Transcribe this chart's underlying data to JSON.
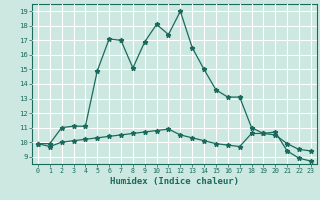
{
  "title": "",
  "xlabel": "Humidex (Indice chaleur)",
  "xlim": [
    -0.5,
    23.5
  ],
  "ylim": [
    8.5,
    19.5
  ],
  "xticks": [
    0,
    1,
    2,
    3,
    4,
    5,
    6,
    7,
    8,
    9,
    10,
    11,
    12,
    13,
    14,
    15,
    16,
    17,
    18,
    19,
    20,
    21,
    22,
    23
  ],
  "yticks": [
    9,
    10,
    11,
    12,
    13,
    14,
    15,
    16,
    17,
    18,
    19
  ],
  "background_color": "#cce8e0",
  "grid_color": "#ffffff",
  "line_color": "#1a6b5e",
  "line1_x": [
    0,
    1,
    2,
    3,
    4,
    5,
    6,
    7,
    8,
    9,
    10,
    11,
    12,
    13,
    14,
    15,
    16,
    17,
    18,
    19,
    20,
    21,
    22,
    23
  ],
  "line1_y": [
    9.9,
    9.9,
    11.0,
    11.1,
    11.1,
    14.9,
    17.1,
    17.0,
    15.1,
    16.9,
    18.1,
    17.4,
    19.0,
    16.5,
    15.0,
    13.6,
    13.1,
    13.1,
    11.0,
    10.6,
    10.7,
    9.4,
    8.9,
    8.7
  ],
  "line2_x": [
    0,
    1,
    2,
    3,
    4,
    5,
    6,
    7,
    8,
    9,
    10,
    11,
    12,
    13,
    14,
    15,
    16,
    17,
    18,
    19,
    20,
    21,
    22,
    23
  ],
  "line2_y": [
    9.9,
    9.7,
    10.0,
    10.1,
    10.2,
    10.3,
    10.4,
    10.5,
    10.6,
    10.7,
    10.8,
    10.9,
    10.5,
    10.3,
    10.1,
    9.9,
    9.8,
    9.7,
    10.6,
    10.6,
    10.5,
    9.9,
    9.5,
    9.4
  ]
}
